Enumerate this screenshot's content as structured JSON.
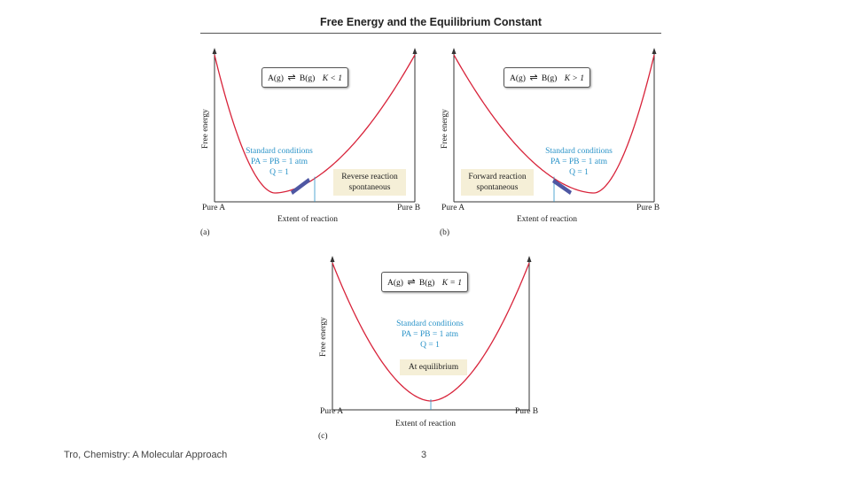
{
  "slide": {
    "title": "Free Energy and the Equilibrium Constant",
    "footer_source": "Tro, Chemistry: A Molecular Approach",
    "page_number": "3"
  },
  "colors": {
    "curve": "#d8233a",
    "conditions_text": "#2a93c8",
    "note_fill": "#f5efd7",
    "arrow_fill": "#4e57a3"
  },
  "panels": {
    "a": {
      "label": "(a)",
      "y_axis": "Free energy",
      "x_axis": "Extent of reaction",
      "left_end": "Pure A",
      "right_end": "Pure B",
      "equation": {
        "reactant": "A(g)",
        "product": "B(g)",
        "k_relation": "K < 1"
      },
      "conditions": [
        "Standard conditions",
        "PA = PB = 1 atm",
        "Q = 1"
      ],
      "note": [
        "Reverse reaction",
        "spontaneous"
      ],
      "minimum_position": 0.3,
      "q_position": 0.5
    },
    "b": {
      "label": "(b)",
      "y_axis": "Free energy",
      "x_axis": "Extent of reaction",
      "left_end": "Pure A",
      "right_end": "Pure B",
      "equation": {
        "reactant": "A(g)",
        "product": "B(g)",
        "k_relation": "K > 1"
      },
      "conditions": [
        "Standard conditions",
        "PA = PB = 1 atm",
        "Q = 1"
      ],
      "note": [
        "Forward reaction",
        "spontaneous"
      ],
      "minimum_position": 0.7,
      "q_position": 0.5
    },
    "c": {
      "label": "(c)",
      "y_axis": "Free energy",
      "x_axis": "Extent of reaction",
      "left_end": "Pure A",
      "right_end": "Pure B",
      "equation": {
        "reactant": "A(g)",
        "product": "B(g)",
        "k_relation": "K = 1"
      },
      "conditions": [
        "Standard conditions",
        "PA = PB = 1 atm",
        "Q = 1"
      ],
      "note": [
        "At equilibrium"
      ],
      "minimum_position": 0.5,
      "q_position": 0.5
    }
  }
}
